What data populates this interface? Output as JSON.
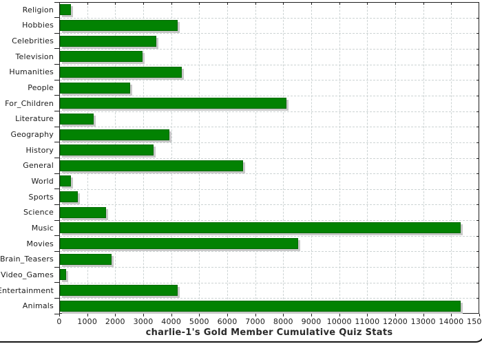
{
  "chart_data": {
    "type": "bar",
    "orientation": "horizontal",
    "title": "charlie-1's Gold Member Cumulative Quiz Stats",
    "categories": [
      "Religion",
      "Hobbies",
      "Celebrities",
      "Television",
      "Humanities",
      "People",
      "For_Children",
      "Literature",
      "Geography",
      "History",
      "General",
      "World",
      "Sports",
      "Science",
      "Music",
      "Movies",
      "Brain_Teasers",
      "Video_Games",
      "Entertainment",
      "Animals"
    ],
    "values": [
      400,
      4200,
      3450,
      2950,
      4350,
      2500,
      8100,
      1200,
      3900,
      3350,
      6550,
      400,
      650,
      1650,
      14300,
      8500,
      1850,
      220,
      4200,
      14300
    ],
    "xlabel": "",
    "ylabel": "",
    "xlim": [
      0,
      15000
    ],
    "x_ticks": [
      0,
      1000,
      2000,
      3000,
      4000,
      5000,
      6000,
      7000,
      8000,
      9000,
      10000,
      11000,
      12000,
      13000,
      14000,
      15000
    ],
    "grid": "dashed, vertical at every 1000 and horizontal at category boundaries",
    "legend": "none",
    "title_position": "bottom center",
    "colors": {
      "bar_fill": "#028202",
      "bar_border": "#026902",
      "bar_shadow": "#c8c8c8",
      "grid_line": "#ccd3d3",
      "axis_line": "#1c1c1c",
      "text": "#1a1a1a",
      "background": "#ffffff"
    }
  }
}
